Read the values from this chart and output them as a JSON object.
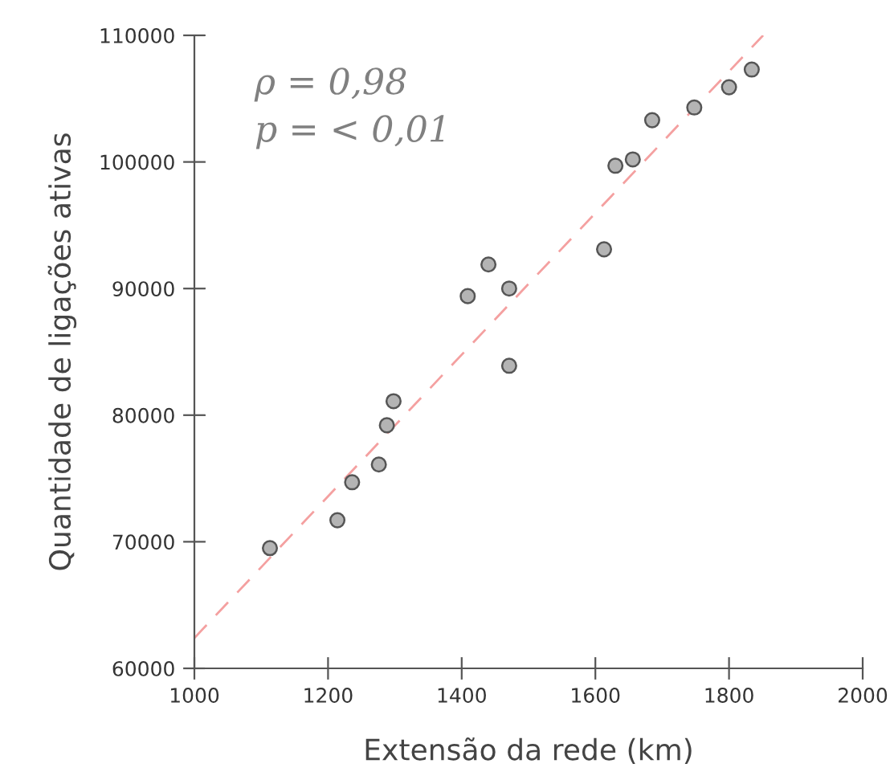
{
  "chart_data": {
    "type": "scatter",
    "xlabel": "Extensão da rede (km)",
    "ylabel": "Quantidade de ligações ativas",
    "annotations": [
      "ρ = 0,98",
      "p = < 0,01"
    ],
    "xlim": [
      1000,
      2000
    ],
    "xticks": [
      1000,
      1200,
      1400,
      1600,
      1800,
      2000
    ],
    "ylim": [
      60000,
      110000
    ],
    "yticks": [
      60000,
      70000,
      80000,
      90000,
      100000,
      110000
    ],
    "grid": false,
    "legend": false,
    "series": [
      {
        "marker": "circle",
        "color": "#b4b4b4",
        "x": [
          1113,
          1214,
          1236,
          1276,
          1288,
          1298,
          1409,
          1440,
          1471,
          1471,
          1613,
          1630,
          1656,
          1685,
          1748,
          1800,
          1834
        ],
        "values": [
          69500,
          71700,
          74700,
          76100,
          79200,
          81100,
          89400,
          91900,
          90000,
          83900,
          93100,
          99700,
          100200,
          103300,
          104300,
          105900,
          107300
        ]
      },
      {
        "type": "line",
        "color": "#f4a0a0",
        "line_style": "dashed",
        "x": [
          1000,
          1851
        ],
        "values": [
          62400,
          110000
        ]
      }
    ]
  }
}
